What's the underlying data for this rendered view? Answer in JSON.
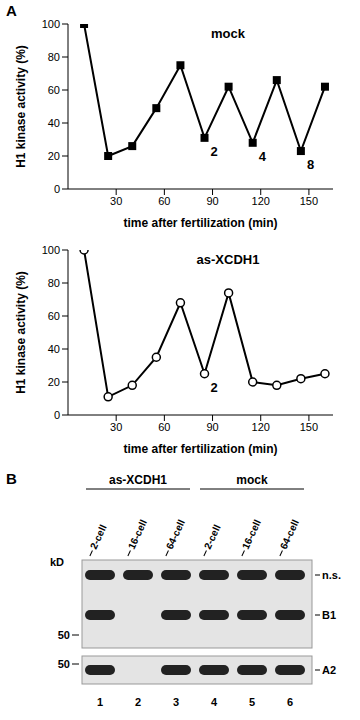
{
  "panel_labels": [
    "A",
    "B"
  ],
  "chart_data": [
    {
      "type": "line",
      "title": "mock",
      "x_label": "time after fertilization (min)",
      "y_label": "H1 kinase activity (%)",
      "x": [
        10,
        25,
        40,
        55,
        70,
        85,
        100,
        115,
        130,
        145,
        160
      ],
      "values": [
        100,
        20,
        26,
        49,
        75,
        31,
        62,
        28,
        66,
        23,
        62
      ],
      "point_labels": [
        null,
        null,
        null,
        null,
        null,
        "2",
        null,
        "4",
        null,
        "8",
        null
      ],
      "color": "#000000",
      "marker": "square",
      "xlim": [
        0,
        165
      ],
      "xticks": [
        30,
        60,
        90,
        120,
        150
      ],
      "ylim": [
        0,
        100
      ],
      "yticks": [
        0,
        20,
        40,
        60,
        80,
        100
      ],
      "grid": false
    },
    {
      "type": "line",
      "title": "as-XCDH1",
      "x_label": "time after fertilization (min)",
      "y_label": "H1 kinase activity (%)",
      "x": [
        10,
        25,
        40,
        55,
        70,
        85,
        100,
        115,
        130,
        145,
        160
      ],
      "values": [
        100,
        11,
        18,
        35,
        68,
        25,
        74,
        20,
        18,
        22,
        25
      ],
      "point_labels": [
        null,
        null,
        null,
        null,
        null,
        "2",
        null,
        null,
        null,
        null,
        null
      ],
      "color": "#000000",
      "marker": "circle_open",
      "xlim": [
        0,
        165
      ],
      "xticks": [
        30,
        60,
        90,
        120,
        150
      ],
      "ylim": [
        0,
        100
      ],
      "yticks": [
        0,
        20,
        40,
        60,
        80,
        100
      ],
      "grid": false
    }
  ],
  "blot": {
    "unit": "kD",
    "groups": [
      {
        "label": "as-XCDH1",
        "lanes": [
          1,
          3
        ]
      },
      {
        "label": "mock",
        "lanes": [
          4,
          6
        ]
      }
    ],
    "lane_labels": [
      "2-cell",
      "16-cell",
      "64-cell",
      "2-cell",
      "16-cell",
      "64-cell"
    ],
    "lane_numbers": [
      1,
      2,
      3,
      4,
      5,
      6
    ],
    "blots": [
      {
        "markers": [
          50
        ],
        "bands": [
          {
            "label": "n.s.",
            "lanes": [
              true,
              true,
              true,
              true,
              true,
              true
            ]
          },
          {
            "label": "B1",
            "lanes": [
              true,
              false,
              true,
              true,
              true,
              true
            ]
          }
        ]
      },
      {
        "markers": [
          50
        ],
        "bands": [
          {
            "label": "A2",
            "lanes": [
              true,
              false,
              true,
              true,
              true,
              true
            ]
          }
        ]
      }
    ]
  }
}
